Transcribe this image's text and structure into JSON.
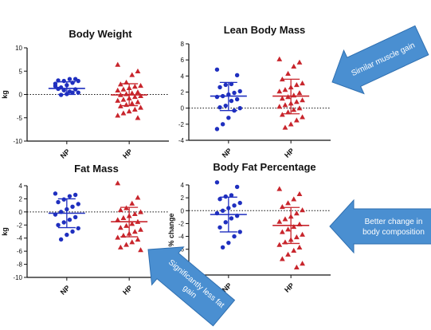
{
  "colors": {
    "np": "#1f2fbf",
    "hp": "#c8252c",
    "callout_fill": "#4a8fd1",
    "callout_stroke": "#2f6fb0"
  },
  "chart_data": [
    {
      "type": "scatter",
      "title": "Body Weight",
      "ylabel": "kg",
      "ylim": [
        -10,
        10
      ],
      "yticks": [
        "-10",
        "-5",
        "0",
        "5",
        "10"
      ],
      "categories": [
        "NP",
        "HP"
      ],
      "series": [
        {
          "name": "NP",
          "mean": 1.3,
          "sd_low": 0.0,
          "sd_high": 2.7,
          "values": [
            2.3,
            3.3,
            3.3,
            2.9,
            3.0,
            2.9,
            2.5,
            2.0,
            1.5,
            1.8,
            1.1,
            0.6,
            0.9,
            1.2,
            0.4,
            0.4,
            0.1,
            -0.1
          ]
        },
        {
          "name": "HP",
          "mean": -0.1,
          "sd_low": -2.4,
          "sd_high": 2.3,
          "values": [
            6.4,
            5.0,
            4.2,
            2.6,
            2.2,
            1.9,
            1.7,
            1.4,
            1.1,
            0.9,
            0.5,
            0.3,
            0.1,
            -0.1,
            -0.3,
            -0.5,
            -0.8,
            -1.1,
            -1.3,
            -1.6,
            -1.9,
            -2.2,
            -2.5,
            -2.8,
            -3.2,
            -3.6,
            -4.0,
            -4.5,
            -5.0
          ]
        }
      ]
    },
    {
      "type": "scatter",
      "title": "Lean Body Mass",
      "ylabel": "",
      "ylim": [
        -4,
        8
      ],
      "yticks": [
        "-4",
        "-2",
        "0",
        "2",
        "4",
        "6",
        "8"
      ],
      "categories": [
        "NP",
        "HP"
      ],
      "series": [
        {
          "name": "NP",
          "mean": 1.5,
          "sd_low": -0.3,
          "sd_high": 3.2,
          "values": [
            4.8,
            4.1,
            3.0,
            2.9,
            2.6,
            2.1,
            1.9,
            1.7,
            1.5,
            1.4,
            1.1,
            0.9,
            0.3,
            0.1,
            0.0,
            -0.3,
            -1.2,
            -2.0,
            -2.6
          ]
        },
        {
          "name": "HP",
          "mean": 1.5,
          "sd_low": -0.7,
          "sd_high": 3.6,
          "values": [
            6.1,
            5.7,
            5.2,
            4.3,
            3.6,
            3.1,
            2.9,
            2.6,
            2.3,
            2.1,
            1.9,
            1.6,
            1.4,
            1.2,
            1.0,
            0.8,
            0.6,
            0.4,
            0.2,
            0.0,
            -0.2,
            -0.5,
            -0.8,
            -1.1,
            -1.5,
            -2.0,
            -2.4
          ]
        }
      ]
    },
    {
      "type": "scatter",
      "title": "Fat Mass",
      "ylabel": "kg",
      "ylim": [
        -10,
        4
      ],
      "yticks": [
        "-10",
        "-8",
        "-6",
        "-4",
        "-2",
        "0",
        "2",
        "4"
      ],
      "categories": [
        "NP",
        "HP"
      ],
      "series": [
        {
          "name": "NP",
          "mean": -0.2,
          "sd_low": -2.4,
          "sd_high": 2.0,
          "values": [
            2.8,
            2.6,
            2.4,
            1.9,
            1.5,
            1.2,
            0.8,
            0.4,
            0.0,
            -0.4,
            -0.8,
            -1.2,
            -1.6,
            -2.0,
            -2.5,
            -3.0,
            -3.5,
            -4.2
          ]
        },
        {
          "name": "HP",
          "mean": -1.5,
          "sd_low": -3.8,
          "sd_high": 0.7,
          "values": [
            4.4,
            2.2,
            1.3,
            0.6,
            0.3,
            0.0,
            -0.3,
            -0.6,
            -0.9,
            -1.2,
            -1.5,
            -1.8,
            -2.1,
            -2.4,
            -2.7,
            -3.0,
            -3.3,
            -3.6,
            -3.9,
            -4.2,
            -4.6,
            -5.0,
            -5.4,
            -5.8
          ]
        }
      ]
    },
    {
      "type": "scatter",
      "title": "Body Fat Percentage",
      "ylabel": "% change",
      "ylim": [
        -10,
        4
      ],
      "yticks": [
        "-10",
        "-8",
        "-6",
        "-4",
        "-2",
        "0",
        "2",
        "4"
      ],
      "categories": [
        "NP",
        "HP"
      ],
      "series": [
        {
          "name": "NP",
          "mean": -0.6,
          "sd_low": -3.3,
          "sd_high": 2.1,
          "values": [
            4.4,
            3.7,
            2.4,
            2.2,
            1.8,
            1.2,
            0.8,
            0.4,
            0.0,
            -0.4,
            -0.8,
            -1.2,
            -1.8,
            -2.6,
            -3.3,
            -4.0,
            -5.0,
            -5.7
          ]
        },
        {
          "name": "HP",
          "mean": -2.3,
          "sd_low": -5.1,
          "sd_high": 0.5,
          "values": [
            3.4,
            2.6,
            1.8,
            1.2,
            0.6,
            0.1,
            -0.4,
            -0.9,
            -1.3,
            -1.7,
            -2.1,
            -2.5,
            -2.9,
            -3.3,
            -3.7,
            -4.1,
            -4.5,
            -4.9,
            -5.3,
            -5.7,
            -6.2,
            -6.8,
            -7.5,
            -8.2,
            -8.8
          ]
        }
      ]
    }
  ],
  "callouts": [
    {
      "text": "Similar muscle gain"
    },
    {
      "text": "Better change in body composition"
    },
    {
      "text": "Significantly less fat gain"
    }
  ]
}
